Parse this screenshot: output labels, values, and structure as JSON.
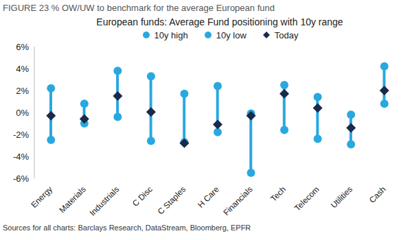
{
  "chart_data": {
    "type": "range",
    "title": "FIGURE 23  % OW/UW to benchmark for the average European fund",
    "subtitle": "European funds: Average Fund positioning with 10y range",
    "annotations": [
      "Sources for all charts: Barclays Research, DataStream, Bloomberg, EPFR"
    ],
    "categories": [
      "Energy",
      "Materials",
      "Industrials",
      "C Disc",
      "C Staples",
      "H Care",
      "Financials",
      "Tech",
      "Telecom",
      "Utilities",
      "Cash"
    ],
    "series": [
      {
        "name": "10y high",
        "color": "#29a8e0",
        "marker": "circle",
        "values": [
          2.2,
          0.8,
          3.8,
          3.3,
          1.7,
          2.4,
          -0.1,
          2.5,
          1.4,
          -0.2,
          4.2
        ]
      },
      {
        "name": "10y low",
        "color": "#29a8e0",
        "marker": "circle",
        "values": [
          -2.5,
          -1.0,
          -0.4,
          -2.6,
          -2.7,
          -1.8,
          -5.5,
          -1.6,
          -2.4,
          -2.9,
          0.8
        ]
      },
      {
        "name": "Today",
        "color": "#1b2a4a",
        "marker": "diamond",
        "values": [
          -0.3,
          -0.6,
          1.5,
          0.05,
          -2.8,
          -1.1,
          -0.3,
          1.7,
          0.4,
          -1.4,
          2.0
        ]
      }
    ],
    "ylim": [
      -6,
      6
    ],
    "yticks": [
      {
        "value": -6,
        "label": "-6%"
      },
      {
        "value": -4,
        "label": "-4%"
      },
      {
        "value": -2,
        "label": "-2%"
      },
      {
        "value": 0,
        "label": "0%"
      },
      {
        "value": 2,
        "label": "2%"
      },
      {
        "value": 4,
        "label": "4%"
      },
      {
        "value": 6,
        "label": "6%"
      }
    ],
    "grid": false,
    "legend": "top"
  }
}
